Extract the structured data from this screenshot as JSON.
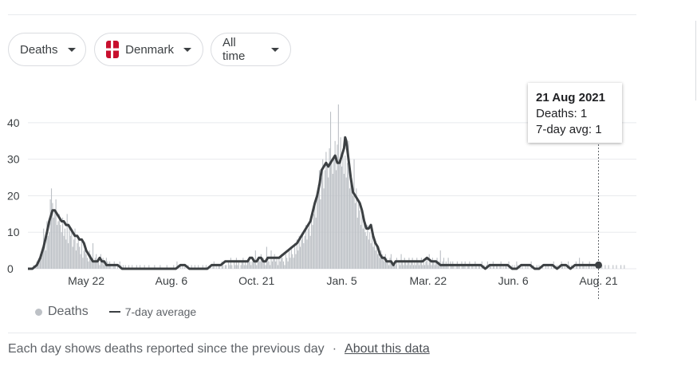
{
  "filters": {
    "metric": "Deaths",
    "country": "Denmark",
    "range": "All time"
  },
  "tooltip": {
    "date": "21 Aug 2021",
    "deaths_label": "Deaths: 1",
    "avg_label": "7-day avg: 1"
  },
  "legend": {
    "bars": "Deaths",
    "line": "7-day average"
  },
  "footer": {
    "note": "Each day shows deaths reported since the previous day",
    "separator": "·",
    "link": "About this data"
  },
  "colors": {
    "bar": "#bdc1c6",
    "line": "#3c4043",
    "grid": "#e8eaed",
    "flag_red": "#c8102e"
  },
  "chart_data": {
    "type": "bar",
    "title": "",
    "ylim": [
      0,
      45
    ],
    "yticks": [
      0,
      10,
      20,
      30,
      40
    ],
    "x_range_days": [
      0,
      530
    ],
    "xticks": [
      {
        "day": 52,
        "label": "May 22"
      },
      {
        "day": 128,
        "label": "Aug. 6"
      },
      {
        "day": 204,
        "label": "Oct. 21"
      },
      {
        "day": 280,
        "label": "Jan. 5"
      },
      {
        "day": 357,
        "label": "Mar. 22"
      },
      {
        "day": 433,
        "label": "Jun. 6"
      },
      {
        "day": 509,
        "label": "Aug. 21"
      }
    ],
    "series": [
      {
        "name": "Deaths",
        "kind": "bar",
        "values": [
          0,
          0,
          0,
          0,
          0,
          1,
          0,
          1,
          2,
          1,
          3,
          4,
          3,
          6,
          11,
          7,
          5,
          13,
          9,
          10,
          19,
          22,
          18,
          14,
          16,
          19,
          12,
          13,
          15,
          12,
          10,
          14,
          9,
          11,
          8,
          15,
          7,
          12,
          9,
          10,
          6,
          8,
          11,
          5,
          7,
          9,
          6,
          4,
          8,
          3,
          5,
          6,
          4,
          3,
          2,
          5,
          4,
          3,
          7,
          2,
          3,
          4,
          2,
          3,
          1,
          4,
          2,
          3,
          1,
          2,
          3,
          2,
          1,
          2,
          1,
          0,
          1,
          2,
          1,
          0,
          1,
          0,
          2,
          1,
          0,
          1,
          0,
          1,
          0,
          0,
          1,
          0,
          0,
          1,
          0,
          0,
          0,
          1,
          0,
          0,
          1,
          0,
          0,
          0,
          1,
          0,
          0,
          0,
          1,
          0,
          0,
          0,
          0,
          1,
          0,
          0,
          0,
          0,
          1,
          0,
          0,
          0,
          0,
          0,
          1,
          0,
          0,
          0,
          0,
          0,
          1,
          0,
          0,
          2,
          1,
          0,
          1,
          0,
          1,
          0,
          1,
          0,
          0,
          1,
          0,
          0,
          1,
          0,
          0,
          1,
          0,
          0,
          1,
          0,
          0,
          0,
          1,
          0,
          0,
          1,
          0,
          0,
          0,
          1,
          0,
          1,
          2,
          0,
          1,
          0,
          1,
          1,
          0,
          2,
          1,
          0,
          1,
          1,
          0,
          2,
          1,
          3,
          1,
          0,
          2,
          1,
          3,
          1,
          2,
          0,
          1,
          2,
          3,
          1,
          2,
          1,
          2,
          3,
          2,
          1,
          2,
          3,
          2,
          5,
          1,
          2,
          3,
          2,
          4,
          2,
          3,
          2,
          1,
          6,
          3,
          2,
          1,
          5,
          2,
          3,
          4,
          2,
          3,
          1,
          3,
          2,
          4,
          3,
          2,
          1,
          4,
          3,
          2,
          5,
          3,
          6,
          4,
          3,
          7,
          4,
          8,
          5,
          9,
          6,
          8,
          10,
          7,
          9,
          12,
          8,
          11,
          13,
          9,
          14,
          12,
          15,
          18,
          14,
          20,
          23,
          27,
          19,
          25,
          30,
          22,
          27,
          32,
          28,
          25,
          33,
          43,
          29,
          26,
          31,
          35,
          27,
          34,
          45,
          30,
          36,
          28,
          33,
          26,
          31,
          25,
          29,
          35,
          22,
          26,
          24,
          20,
          30,
          18,
          22,
          14,
          19,
          16,
          12,
          15,
          11,
          13,
          10,
          9,
          12,
          8,
          10,
          7,
          9,
          6,
          8,
          5,
          7,
          4,
          6,
          3,
          5,
          4,
          3,
          2,
          4,
          3,
          2,
          1,
          3,
          4,
          2,
          1,
          2,
          1,
          3,
          0,
          2,
          1,
          4,
          2,
          1,
          3,
          2,
          1,
          2,
          3,
          1,
          2,
          3,
          1,
          2,
          1,
          3,
          2,
          1,
          2,
          3,
          1,
          2,
          1,
          2,
          3,
          1,
          4,
          2,
          1,
          3,
          2,
          1,
          2,
          3,
          1,
          2,
          5,
          1,
          2,
          3,
          1,
          2,
          1,
          3,
          0,
          2,
          1,
          2,
          1,
          0,
          1,
          2,
          1,
          1,
          0,
          2,
          1,
          1,
          2,
          0,
          1,
          1,
          2,
          0,
          1,
          1,
          0,
          2,
          1,
          0,
          1,
          1,
          0,
          2,
          1,
          1,
          0,
          1,
          2,
          0,
          1,
          1,
          0,
          2,
          1,
          0,
          1,
          1,
          0,
          1,
          2,
          0,
          1,
          0,
          1,
          1,
          0,
          2,
          1,
          0,
          1,
          0,
          1,
          0,
          2,
          1,
          0,
          1,
          0,
          1,
          0,
          0,
          1,
          0,
          1,
          0,
          0,
          2,
          0,
          1,
          0,
          0,
          1,
          0,
          1,
          0,
          0,
          1,
          0,
          0,
          1,
          0,
          1,
          0,
          0,
          1,
          0,
          2,
          1,
          0,
          1,
          0,
          1,
          0,
          2,
          1,
          0,
          1,
          0,
          1,
          2,
          1,
          0,
          1,
          0,
          1,
          0,
          2,
          1,
          0,
          3,
          1,
          0,
          2,
          1,
          0,
          1,
          0,
          1,
          2,
          0,
          1,
          0,
          1,
          0,
          1,
          0,
          0,
          1,
          0,
          1,
          0,
          0,
          1,
          0,
          0,
          1,
          0,
          0,
          0,
          1,
          0,
          0,
          1,
          0,
          0,
          0,
          1,
          0,
          0,
          1
        ]
      },
      {
        "name": "7-day average",
        "kind": "line",
        "points": [
          [
            0,
            0
          ],
          [
            4,
            0
          ],
          [
            8,
            1
          ],
          [
            11,
            3
          ],
          [
            14,
            6
          ],
          [
            17,
            10
          ],
          [
            19,
            13
          ],
          [
            21,
            15
          ],
          [
            22,
            16
          ],
          [
            24,
            16
          ],
          [
            26,
            15
          ],
          [
            28,
            14
          ],
          [
            30,
            13
          ],
          [
            32,
            13
          ],
          [
            34,
            12
          ],
          [
            36,
            12
          ],
          [
            38,
            11
          ],
          [
            40,
            10
          ],
          [
            42,
            9
          ],
          [
            44,
            9
          ],
          [
            46,
            8
          ],
          [
            48,
            8
          ],
          [
            50,
            7
          ],
          [
            52,
            5
          ],
          [
            54,
            4
          ],
          [
            56,
            3
          ],
          [
            58,
            2
          ],
          [
            60,
            2
          ],
          [
            62,
            2
          ],
          [
            64,
            3
          ],
          [
            66,
            2
          ],
          [
            68,
            2
          ],
          [
            70,
            1
          ],
          [
            72,
            1
          ],
          [
            76,
            1
          ],
          [
            80,
            1
          ],
          [
            84,
            0
          ],
          [
            88,
            0
          ],
          [
            92,
            0
          ],
          [
            96,
            0
          ],
          [
            100,
            0
          ],
          [
            104,
            0
          ],
          [
            108,
            0
          ],
          [
            112,
            0
          ],
          [
            116,
            0
          ],
          [
            120,
            0
          ],
          [
            124,
            0
          ],
          [
            128,
            0
          ],
          [
            132,
            0
          ],
          [
            136,
            1
          ],
          [
            140,
            1
          ],
          [
            144,
            0
          ],
          [
            148,
            0
          ],
          [
            152,
            0
          ],
          [
            156,
            0
          ],
          [
            160,
            0
          ],
          [
            164,
            1
          ],
          [
            168,
            1
          ],
          [
            172,
            1
          ],
          [
            176,
            2
          ],
          [
            180,
            2
          ],
          [
            184,
            2
          ],
          [
            188,
            2
          ],
          [
            192,
            2
          ],
          [
            196,
            2
          ],
          [
            198,
            3
          ],
          [
            200,
            3
          ],
          [
            202,
            2
          ],
          [
            204,
            2
          ],
          [
            206,
            3
          ],
          [
            208,
            3
          ],
          [
            210,
            2
          ],
          [
            212,
            2
          ],
          [
            214,
            3
          ],
          [
            216,
            3
          ],
          [
            220,
            3
          ],
          [
            224,
            3
          ],
          [
            228,
            4
          ],
          [
            232,
            5
          ],
          [
            236,
            6
          ],
          [
            240,
            7
          ],
          [
            244,
            9
          ],
          [
            248,
            11
          ],
          [
            252,
            13
          ],
          [
            256,
            18
          ],
          [
            258,
            20
          ],
          [
            260,
            23
          ],
          [
            262,
            27
          ],
          [
            264,
            28
          ],
          [
            266,
            29
          ],
          [
            268,
            28
          ],
          [
            270,
            29
          ],
          [
            272,
            30
          ],
          [
            274,
            31
          ],
          [
            276,
            29
          ],
          [
            278,
            29
          ],
          [
            280,
            31
          ],
          [
            282,
            33
          ],
          [
            283,
            36
          ],
          [
            284,
            35
          ],
          [
            286,
            30
          ],
          [
            288,
            25
          ],
          [
            290,
            21
          ],
          [
            292,
            20
          ],
          [
            294,
            19
          ],
          [
            296,
            18
          ],
          [
            298,
            16
          ],
          [
            300,
            13
          ],
          [
            302,
            11
          ],
          [
            304,
            11
          ],
          [
            306,
            12
          ],
          [
            308,
            9
          ],
          [
            310,
            7
          ],
          [
            312,
            6
          ],
          [
            314,
            4
          ],
          [
            316,
            3
          ],
          [
            318,
            3
          ],
          [
            320,
            2
          ],
          [
            322,
            2
          ],
          [
            324,
            2
          ],
          [
            326,
            1
          ],
          [
            328,
            2
          ],
          [
            330,
            2
          ],
          [
            332,
            2
          ],
          [
            336,
            2
          ],
          [
            340,
            2
          ],
          [
            344,
            2
          ],
          [
            348,
            2
          ],
          [
            352,
            2
          ],
          [
            356,
            3
          ],
          [
            360,
            2
          ],
          [
            364,
            2
          ],
          [
            368,
            1
          ],
          [
            372,
            1
          ],
          [
            376,
            1
          ],
          [
            380,
            1
          ],
          [
            384,
            1
          ],
          [
            388,
            1
          ],
          [
            392,
            1
          ],
          [
            396,
            1
          ],
          [
            400,
            1
          ],
          [
            404,
            1
          ],
          [
            408,
            0
          ],
          [
            412,
            1
          ],
          [
            416,
            1
          ],
          [
            420,
            1
          ],
          [
            424,
            1
          ],
          [
            428,
            1
          ],
          [
            432,
            0
          ],
          [
            436,
            0
          ],
          [
            440,
            1
          ],
          [
            444,
            1
          ],
          [
            448,
            1
          ],
          [
            452,
            0
          ],
          [
            456,
            0
          ],
          [
            460,
            1
          ],
          [
            464,
            1
          ],
          [
            468,
            1
          ],
          [
            472,
            0
          ],
          [
            476,
            1
          ],
          [
            480,
            1
          ],
          [
            484,
            0
          ],
          [
            488,
            1
          ],
          [
            492,
            1
          ],
          [
            496,
            1
          ],
          [
            500,
            1
          ],
          [
            504,
            1
          ],
          [
            509,
            1
          ]
        ]
      }
    ],
    "highlight": {
      "day": 509,
      "value": 1
    }
  }
}
